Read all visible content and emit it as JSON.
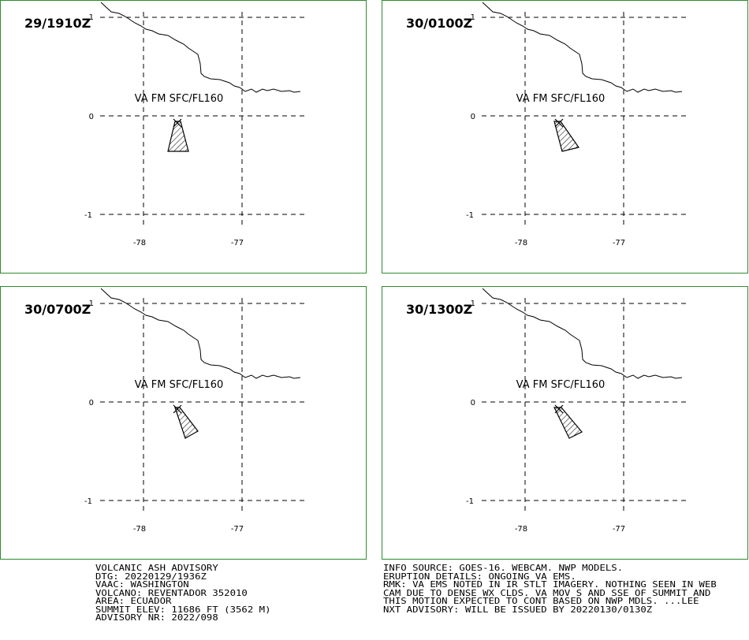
{
  "theme": {
    "panel_border_color": "#2e8b2e",
    "line_color": "#000000",
    "background": "#ffffff"
  },
  "map": {
    "lat_labels": [
      "1",
      "0",
      "-1"
    ],
    "lon_labels": [
      "-78",
      "-77"
    ],
    "va_label": "VA FM SFC/FL160"
  },
  "panels": [
    {
      "time": "29/1910Z"
    },
    {
      "time": "30/0100Z"
    },
    {
      "time": "30/0700Z"
    },
    {
      "time": "30/1300Z"
    }
  ],
  "advisory": {
    "left_lines": [
      "VOLCANIC ASH ADVISORY",
      "DTG: 20220129/1936Z",
      "VAAC: WASHINGTON",
      "VOLCANO: REVENTADOR 352010",
      "AREA: ECUADOR",
      "SUMMIT ELEV: 11686 FT (3562 M)",
      "ADVISORY NR: 2022/098"
    ],
    "right_lines": [
      "INFO SOURCE: GOES-16. WEBCAM. NWP MODELS.",
      "ERUPTION DETAILS: ONGOING VA EMS.",
      "RMK: VA EMS NOTED IN IR STLT IMAGERY. NOTHING SEEN IN WEB",
      "CAM DUE TO DENSE WX CLDS. VA MOV S AND SSE OF SUMMIT AND",
      "THIS MOTION EXPECTED TO CONT BASED ON NWP MDLS. ...LEE",
      "NXT ADVISORY: WILL BE ISSUED BY 20220130/0130Z"
    ]
  }
}
